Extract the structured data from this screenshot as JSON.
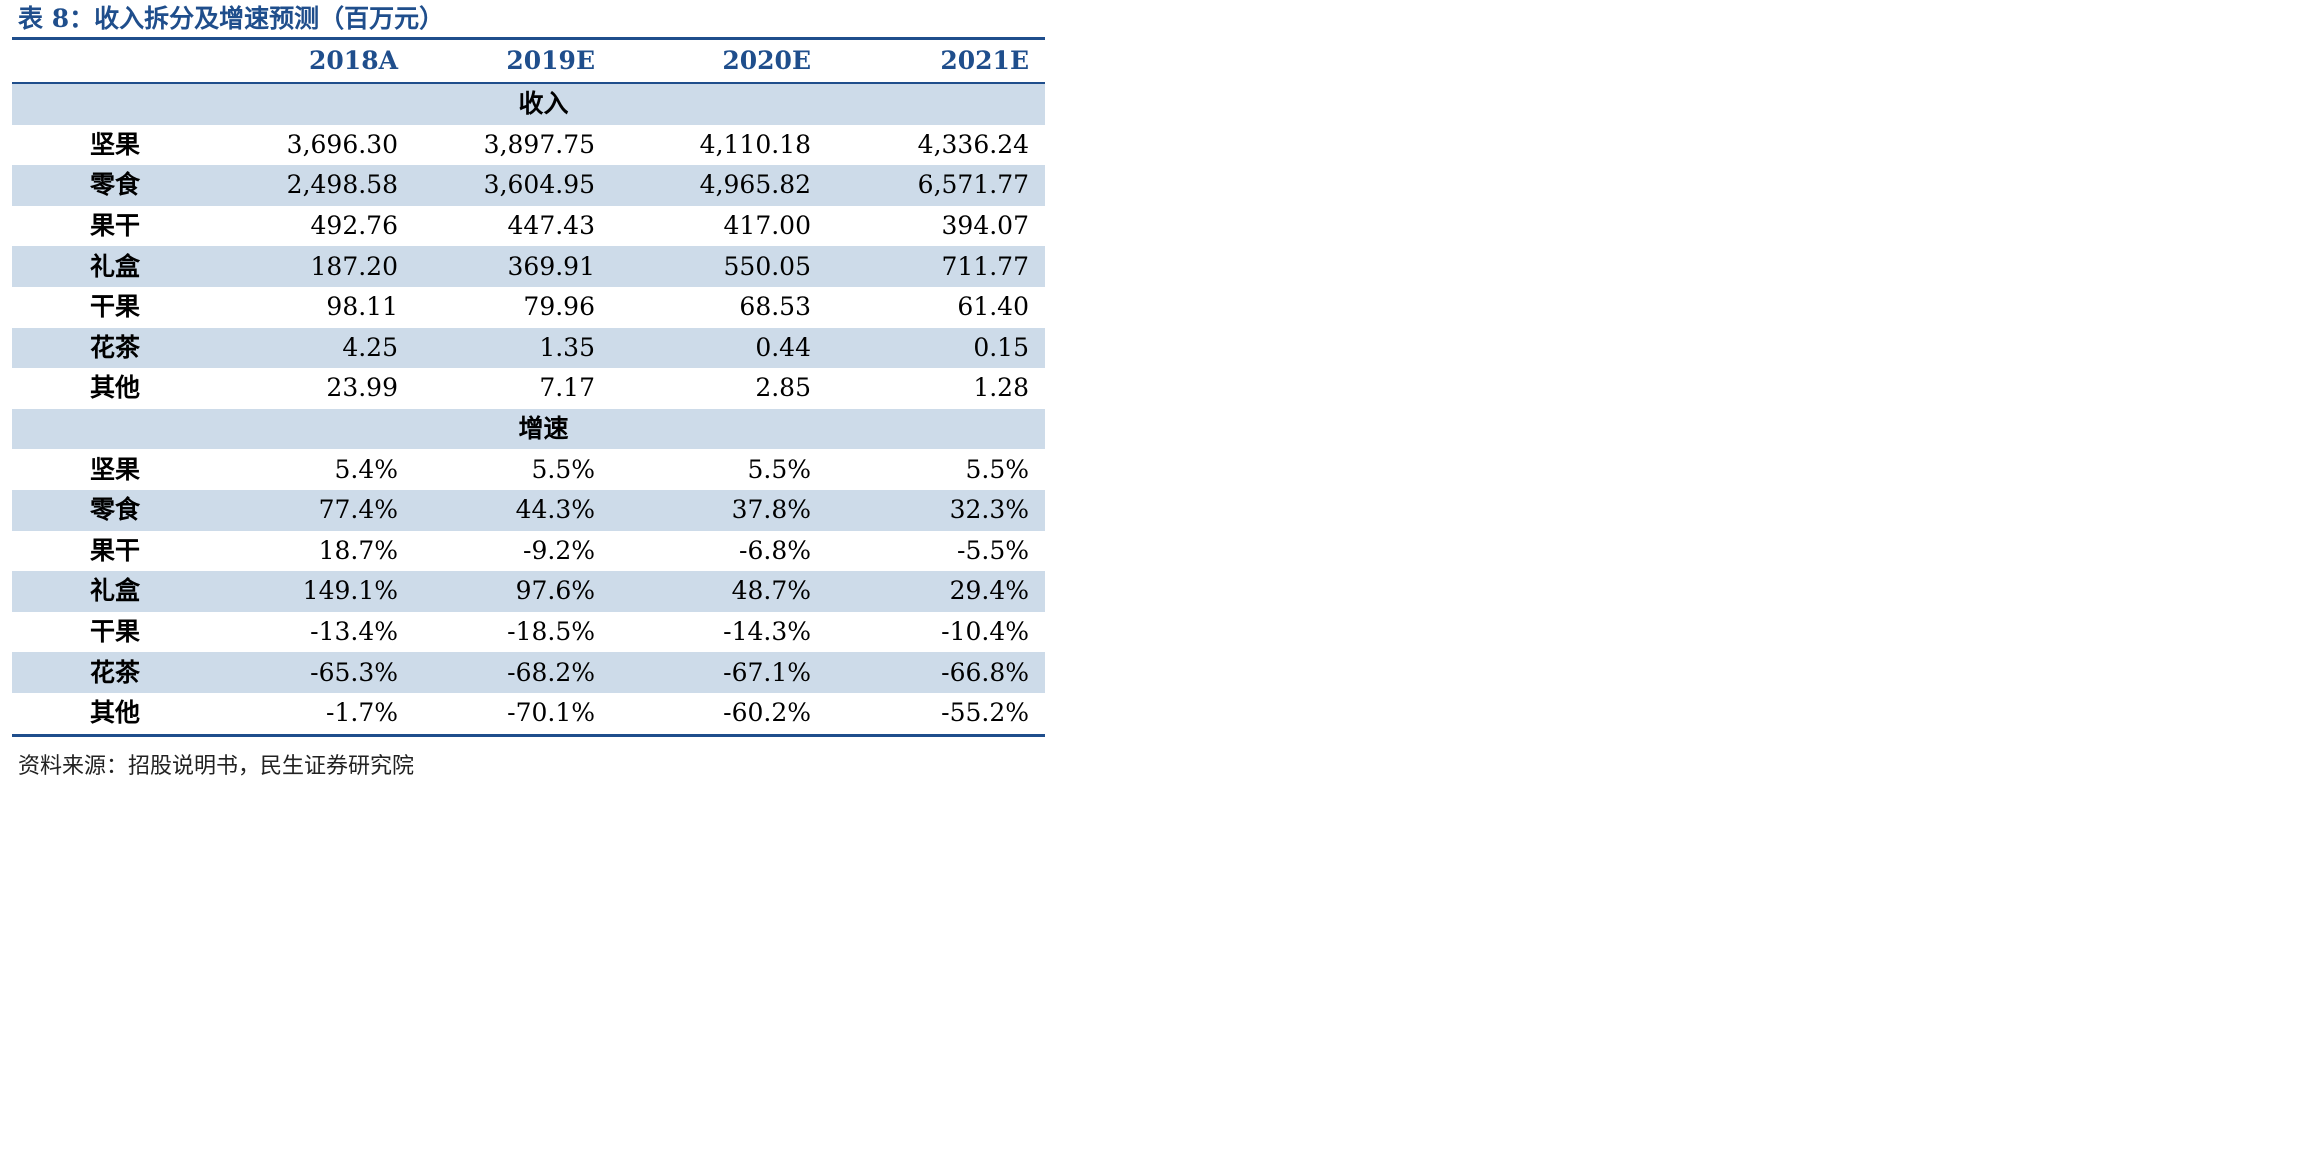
{
  "title": "表 8：收入拆分及增速预测（百万元）",
  "columns": [
    "",
    "2018A",
    "2019E",
    "2020E",
    "2021E"
  ],
  "sections": [
    {
      "label": "收入",
      "rows": [
        {
          "name": "坚果",
          "values": [
            "3,696.30",
            "3,897.75",
            "4,110.18",
            "4,336.24"
          ]
        },
        {
          "name": "零食",
          "values": [
            "2,498.58",
            "3,604.95",
            "4,965.82",
            "6,571.77"
          ]
        },
        {
          "name": "果干",
          "values": [
            "492.76",
            "447.43",
            "417.00",
            "394.07"
          ]
        },
        {
          "name": "礼盒",
          "values": [
            "187.20",
            "369.91",
            "550.05",
            "711.77"
          ]
        },
        {
          "name": "干果",
          "values": [
            "98.11",
            "79.96",
            "68.53",
            "61.40"
          ]
        },
        {
          "name": "花茶",
          "values": [
            "4.25",
            "1.35",
            "0.44",
            "0.15"
          ]
        },
        {
          "name": "其他",
          "values": [
            "23.99",
            "7.17",
            "2.85",
            "1.28"
          ]
        }
      ]
    },
    {
      "label": "增速",
      "rows": [
        {
          "name": "坚果",
          "values": [
            "5.4%",
            "5.5%",
            "5.5%",
            "5.5%"
          ]
        },
        {
          "name": "零食",
          "values": [
            "77.4%",
            "44.3%",
            "37.8%",
            "32.3%"
          ]
        },
        {
          "name": "果干",
          "values": [
            "18.7%",
            "-9.2%",
            "-6.8%",
            "-5.5%"
          ]
        },
        {
          "name": "礼盒",
          "values": [
            "149.1%",
            "97.6%",
            "48.7%",
            "29.4%"
          ]
        },
        {
          "name": "干果",
          "values": [
            "-13.4%",
            "-18.5%",
            "-14.3%",
            "-10.4%"
          ]
        },
        {
          "name": "花茶",
          "values": [
            "-65.3%",
            "-68.2%",
            "-67.1%",
            "-66.8%"
          ]
        },
        {
          "name": "其他",
          "values": [
            "-1.7%",
            "-70.1%",
            "-60.2%",
            "-55.2%"
          ]
        }
      ]
    }
  ],
  "source": "资料来源：招股说明书，民生证券研究院",
  "colors": {
    "accent": "#1f4e8c",
    "shade": "#cddbe9"
  }
}
